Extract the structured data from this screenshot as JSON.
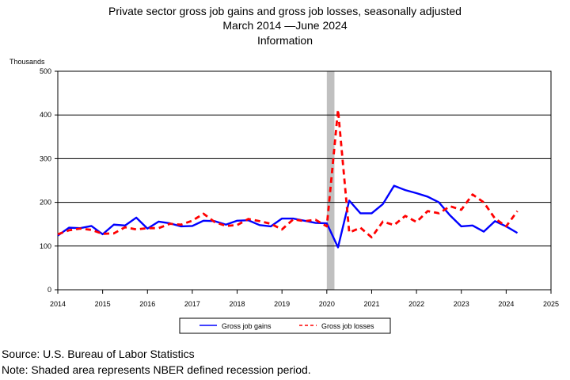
{
  "chart_data": {
    "type": "line",
    "title": "Private sector gross job gains and gross job losses, seasonally adjusted",
    "subtitle": "March 2014 —June 2024",
    "subtitle2": "Information",
    "ylabel": "Thousands",
    "xlim": [
      2014,
      2025
    ],
    "ylim": [
      0,
      500
    ],
    "xticks": [
      "2014",
      "2015",
      "2016",
      "2017",
      "2018",
      "2019",
      "2020",
      "2021",
      "2022",
      "2023",
      "2024",
      "2025"
    ],
    "yticks": [
      "0",
      "100",
      "200",
      "300",
      "400",
      "500"
    ],
    "grid": "horizontal",
    "legend_position": "bottom",
    "recession": [
      2020.0,
      2020.17
    ],
    "colors": {
      "gains": "#0000ff",
      "losses": "#ff0000",
      "recession": "#c0c0c0"
    },
    "x": [
      2014.0,
      2014.25,
      2014.5,
      2014.75,
      2015.0,
      2015.25,
      2015.5,
      2015.75,
      2016.0,
      2016.25,
      2016.5,
      2016.75,
      2017.0,
      2017.25,
      2017.5,
      2017.75,
      2018.0,
      2018.25,
      2018.5,
      2018.75,
      2019.0,
      2019.25,
      2019.5,
      2019.75,
      2020.0,
      2020.25,
      2020.5,
      2020.75,
      2021.0,
      2021.25,
      2021.5,
      2021.75,
      2022.0,
      2022.25,
      2022.5,
      2022.75,
      2023.0,
      2023.25,
      2023.5,
      2023.75,
      2024.0,
      2024.25
    ],
    "series": [
      {
        "name": "Gross job gains",
        "style": "solid",
        "values": [
          124,
          142,
          141,
          146,
          127,
          149,
          147,
          165,
          140,
          156,
          152,
          145,
          146,
          158,
          157,
          149,
          158,
          159,
          148,
          145,
          163,
          163,
          158,
          153,
          152,
          97,
          204,
          175,
          175,
          196,
          238,
          228,
          221,
          213,
          200,
          170,
          145,
          147,
          133,
          157,
          145,
          130
        ]
      },
      {
        "name": "Gross job losses",
        "style": "dashed",
        "values": [
          127,
          136,
          140,
          137,
          128,
          129,
          143,
          138,
          141,
          141,
          151,
          149,
          158,
          174,
          155,
          146,
          148,
          162,
          157,
          151,
          138,
          161,
          157,
          160,
          145,
          412,
          131,
          142,
          120,
          156,
          148,
          169,
          155,
          180,
          175,
          191,
          183,
          218,
          200,
          163,
          145,
          180
        ]
      }
    ]
  },
  "footer": {
    "source": "Source: U.S. Bureau of Labor Statistics",
    "note": "Note: Shaded area represents NBER defined recession period."
  }
}
